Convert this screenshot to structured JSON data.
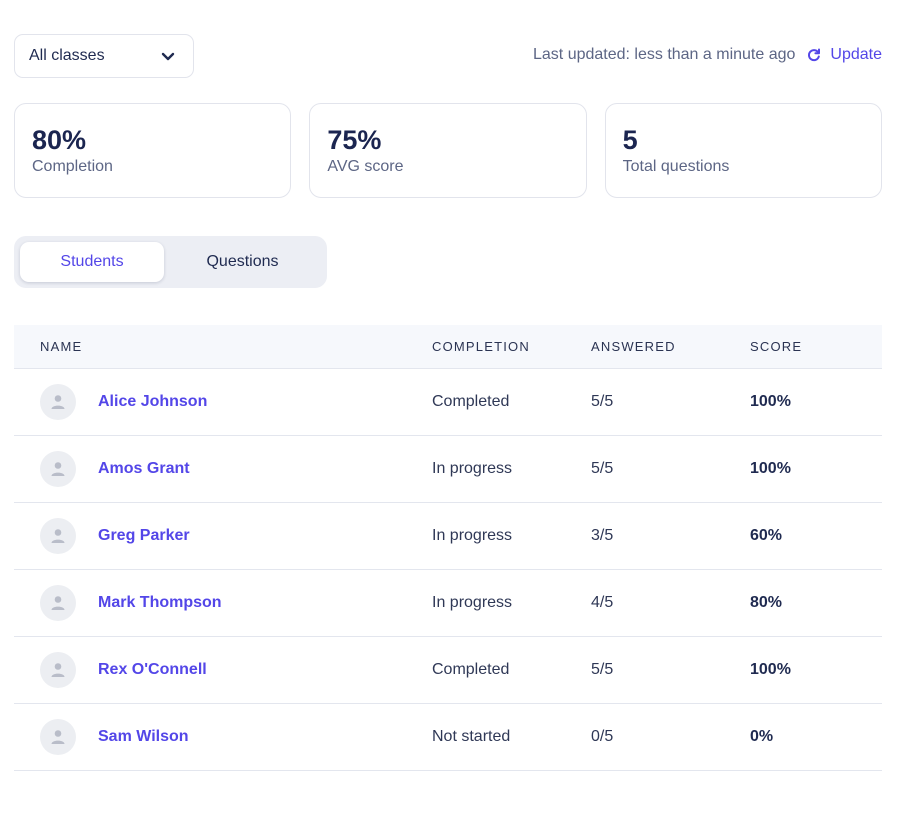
{
  "filter": {
    "selected": "All classes",
    "icon": "chevron-down-icon"
  },
  "status": {
    "last_updated": "Last updated: less than a minute ago",
    "update_label": "Update",
    "update_icon": "refresh-icon"
  },
  "stats": [
    {
      "value": "80%",
      "label": "Completion"
    },
    {
      "value": "75%",
      "label": "AVG score"
    },
    {
      "value": "5",
      "label": "Total questions"
    }
  ],
  "tabs": [
    {
      "label": "Students",
      "active": true
    },
    {
      "label": "Questions",
      "active": false
    }
  ],
  "table": {
    "headers": {
      "name": "NAME",
      "completion": "COMPLETION",
      "answered": "ANSWERED",
      "score": "SCORE"
    },
    "rows": [
      {
        "name": "Alice Johnson",
        "completion": "Completed",
        "answered": "5/5",
        "score": "100%"
      },
      {
        "name": "Amos Grant",
        "completion": "In progress",
        "answered": "5/5",
        "score": "100%"
      },
      {
        "name": "Greg Parker",
        "completion": "In progress",
        "answered": "3/5",
        "score": "60%"
      },
      {
        "name": "Mark Thompson",
        "completion": "In progress",
        "answered": "4/5",
        "score": "80%"
      },
      {
        "name": "Rex O'Connell",
        "completion": "Completed",
        "answered": "5/5",
        "score": "100%"
      },
      {
        "name": "Sam Wilson",
        "completion": "Not started",
        "answered": "0/5",
        "score": "0%"
      }
    ]
  },
  "colors": {
    "accent": "#5346e8",
    "heading": "#1b2550",
    "muted": "#5d6685",
    "border": "#e2e4ec"
  }
}
